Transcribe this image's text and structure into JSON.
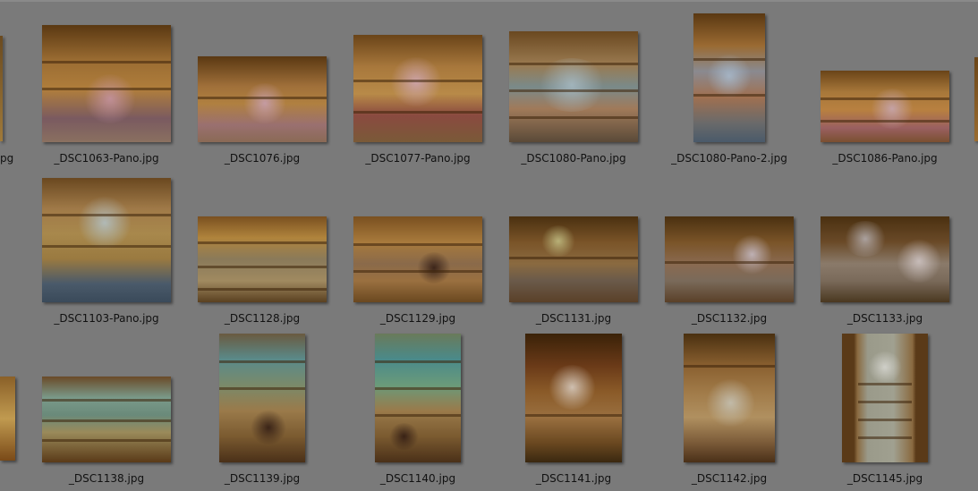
{
  "window": {
    "title": ""
  },
  "partial_label_left": "pg",
  "files": [
    {
      "name": "_DSC1063-Pano.jpg",
      "tone": "warm-pink"
    },
    {
      "name": "_DSC1076.jpg",
      "tone": "warm-pink"
    },
    {
      "name": "_DSC1077-Pano.jpg",
      "tone": "warm-red"
    },
    {
      "name": "_DSC1080-Pano.jpg",
      "tone": "warm-blue"
    },
    {
      "name": "_DSC1080-Pano-2.jpg",
      "tone": "warm-blue"
    },
    {
      "name": "_DSC1086-Pano.jpg",
      "tone": "warm-pink"
    },
    {
      "name": "_DSC1103-Pano.jpg",
      "tone": "warm-blue"
    },
    {
      "name": "_DSC1128.jpg",
      "tone": "warm-shelf"
    },
    {
      "name": "_DSC1129.jpg",
      "tone": "warm-shelf"
    },
    {
      "name": "_DSC1131.jpg",
      "tone": "warm-dark"
    },
    {
      "name": "_DSC1132.jpg",
      "tone": "warm-dark"
    },
    {
      "name": "_DSC1133.jpg",
      "tone": "warm-dark"
    },
    {
      "name": "_DSC1138.jpg",
      "tone": "warm-teal"
    },
    {
      "name": "_DSC1139.jpg",
      "tone": "warm-teal"
    },
    {
      "name": "_DSC1140.jpg",
      "tone": "warm-teal"
    },
    {
      "name": "_DSC1141.jpg",
      "tone": "warm-dark"
    },
    {
      "name": "_DSC1142.jpg",
      "tone": "warm-dark"
    },
    {
      "name": "_DSC1145.jpg",
      "tone": "warm-arch"
    }
  ],
  "colors": {
    "background": "#7a7a7a",
    "label_text": "#111111"
  }
}
